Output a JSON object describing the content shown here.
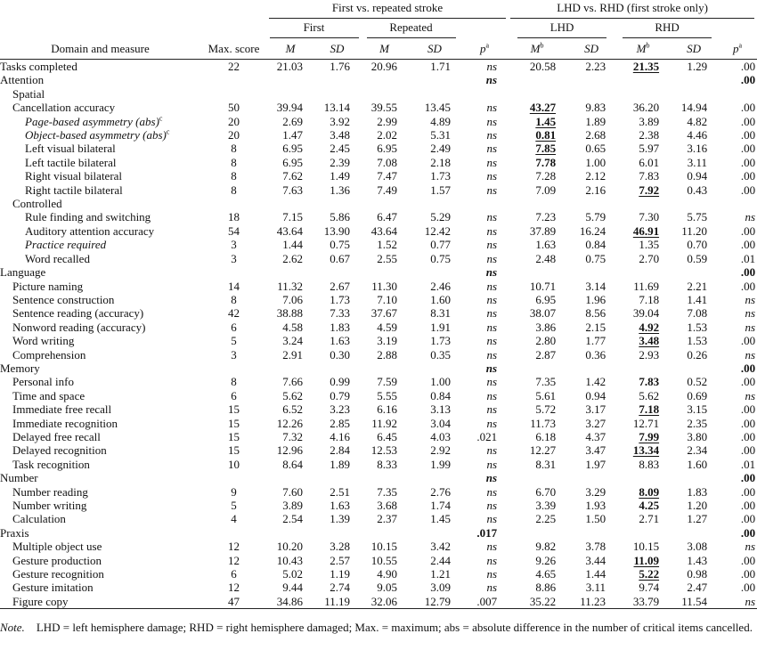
{
  "header": {
    "groups": [
      {
        "label": "First vs. repeated stroke",
        "sub": [
          "First",
          "Repeated"
        ]
      },
      {
        "label": "LHD vs. RHD (first stroke only)",
        "sub": [
          "LHD",
          "RHD"
        ]
      }
    ],
    "domain": "Domain and measure",
    "max": "Max. score",
    "stats": [
      {
        "text": "M"
      },
      {
        "text": "SD"
      },
      {
        "text": "M"
      },
      {
        "text": "SD"
      },
      {
        "text": "p",
        "sup": "a"
      },
      {
        "text": "M",
        "sup": "b"
      },
      {
        "text": "SD"
      },
      {
        "text": "M",
        "sup": "b"
      },
      {
        "text": "SD"
      },
      {
        "text": "p",
        "sup": "a"
      }
    ]
  },
  "rows": [
    {
      "label": "Tasks completed",
      "cells": [
        "22",
        "21.03",
        "1.76",
        "20.96",
        "1.71",
        "ns",
        "20.58",
        "2.23",
        "21.35",
        "1.29",
        ".00"
      ]
    },
    {
      "label": "Attention",
      "cells": [
        null,
        null,
        null,
        null,
        null,
        "ns",
        null,
        null,
        null,
        null,
        ".00"
      ]
    },
    {
      "label": "Spatial"
    },
    {
      "label": "Cancellation accuracy",
      "cells": [
        "50",
        "39.94",
        "13.14",
        "39.55",
        "13.45",
        "ns",
        "43.27",
        "9.83",
        "36.20",
        "14.94",
        ".00"
      ]
    },
    {
      "label": "Page-based asymmetry (abs)",
      "sup": "c",
      "cells": [
        "20",
        "2.69",
        "3.92",
        "2.99",
        "4.89",
        "ns",
        "1.45",
        "1.89",
        "3.89",
        "4.82",
        ".00"
      ]
    },
    {
      "label": "Object-based asymmetry (abs)",
      "sup": "c",
      "cells": [
        "20",
        "1.47",
        "3.48",
        "2.02",
        "5.31",
        "ns",
        "0.81",
        "2.68",
        "2.38",
        "4.46",
        ".00"
      ]
    },
    {
      "label": "Left visual bilateral",
      "cells": [
        "8",
        "6.95",
        "2.45",
        "6.95",
        "2.49",
        "ns",
        "7.85",
        "0.65",
        "5.97",
        "3.16",
        ".00"
      ]
    },
    {
      "label": "Left tactile bilateral",
      "cells": [
        "8",
        "6.95",
        "2.39",
        "7.08",
        "2.18",
        "ns",
        "7.78",
        "1.00",
        "6.01",
        "3.11",
        ".00"
      ]
    },
    {
      "label": "Right visual bilateral",
      "cells": [
        "8",
        "7.62",
        "1.49",
        "7.47",
        "1.73",
        "ns",
        "7.28",
        "2.12",
        "7.83",
        "0.94",
        ".00"
      ]
    },
    {
      "label": "Right tactile bilateral",
      "cells": [
        "8",
        "7.63",
        "1.36",
        "7.49",
        "1.57",
        "ns",
        "7.09",
        "2.16",
        "7.92",
        "0.43",
        ".00"
      ]
    },
    {
      "label": "Controlled"
    },
    {
      "label": "Rule finding and switching",
      "cells": [
        "18",
        "7.15",
        "5.86",
        "6.47",
        "5.29",
        "ns",
        "7.23",
        "5.79",
        "7.30",
        "5.75",
        "ns"
      ]
    },
    {
      "label": "Auditory attention accuracy",
      "cells": [
        "54",
        "43.64",
        "13.90",
        "43.64",
        "12.42",
        "ns",
        "37.89",
        "16.24",
        "46.91",
        "11.20",
        ".00"
      ]
    },
    {
      "label": "Practice required",
      "cells": [
        "3",
        "1.44",
        "0.75",
        "1.52",
        "0.77",
        "ns",
        "1.63",
        "0.84",
        "1.35",
        "0.70",
        ".00"
      ]
    },
    {
      "label": "Word recalled",
      "cells": [
        "3",
        "2.62",
        "0.67",
        "2.55",
        "0.75",
        "ns",
        "2.48",
        "0.75",
        "2.70",
        "0.59",
        ".01"
      ]
    },
    {
      "label": "Language",
      "cells": [
        null,
        null,
        null,
        null,
        null,
        "ns",
        null,
        null,
        null,
        null,
        ".00"
      ]
    },
    {
      "label": "Picture naming",
      "cells": [
        "14",
        "11.32",
        "2.67",
        "11.30",
        "2.46",
        "ns",
        "10.71",
        "3.14",
        "11.69",
        "2.21",
        ".00"
      ]
    },
    {
      "label": "Sentence construction",
      "cells": [
        "8",
        "7.06",
        "1.73",
        "7.10",
        "1.60",
        "ns",
        "6.95",
        "1.96",
        "7.18",
        "1.41",
        "ns"
      ]
    },
    {
      "label": "Sentence reading (accuracy)",
      "cells": [
        "42",
        "38.88",
        "7.33",
        "37.67",
        "8.31",
        "ns",
        "38.07",
        "8.56",
        "39.04",
        "7.08",
        "ns"
      ]
    },
    {
      "label": "Nonword reading (accuracy)",
      "cells": [
        "6",
        "4.58",
        "1.83",
        "4.59",
        "1.91",
        "ns",
        "3.86",
        "2.15",
        "4.92",
        "1.53",
        "ns"
      ]
    },
    {
      "label": "Word writing",
      "cells": [
        "5",
        "3.24",
        "1.63",
        "3.19",
        "1.73",
        "ns",
        "2.80",
        "1.77",
        "3.48",
        "1.53",
        ".00"
      ]
    },
    {
      "label": "Comprehension",
      "cells": [
        "3",
        "2.91",
        "0.30",
        "2.88",
        "0.35",
        "ns",
        "2.87",
        "0.36",
        "2.93",
        "0.26",
        "ns"
      ]
    },
    {
      "label": "Memory",
      "cells": [
        null,
        null,
        null,
        null,
        null,
        "ns",
        null,
        null,
        null,
        null,
        ".00"
      ]
    },
    {
      "label": "Personal info",
      "cells": [
        "8",
        "7.66",
        "0.99",
        "7.59",
        "1.00",
        "ns",
        "7.35",
        "1.42",
        "7.83",
        "0.52",
        ".00"
      ]
    },
    {
      "label": "Time and space",
      "cells": [
        "6",
        "5.62",
        "0.79",
        "5.55",
        "0.84",
        "ns",
        "5.61",
        "0.94",
        "5.62",
        "0.69",
        "ns"
      ]
    },
    {
      "label": "Immediate free recall",
      "cells": [
        "15",
        "6.52",
        "3.23",
        "6.16",
        "3.13",
        "ns",
        "5.72",
        "3.17",
        "7.18",
        "3.15",
        ".00"
      ]
    },
    {
      "label": "Immediate recognition",
      "cells": [
        "15",
        "12.26",
        "2.85",
        "11.92",
        "3.04",
        "ns",
        "11.73",
        "3.27",
        "12.71",
        "2.35",
        ".00"
      ]
    },
    {
      "label": "Delayed free recall",
      "cells": [
        "15",
        "7.32",
        "4.16",
        "6.45",
        "4.03",
        ".021",
        "6.18",
        "4.37",
        "7.99",
        "3.80",
        ".00"
      ]
    },
    {
      "label": "Delayed recognition",
      "cells": [
        "15",
        "12.96",
        "2.84",
        "12.53",
        "2.92",
        "ns",
        "12.27",
        "3.47",
        "13.34",
        "2.34",
        ".00"
      ]
    },
    {
      "label": "Task recognition",
      "cells": [
        "10",
        "8.64",
        "1.89",
        "8.33",
        "1.99",
        "ns",
        "8.31",
        "1.97",
        "8.83",
        "1.60",
        ".01"
      ]
    },
    {
      "label": "Number",
      "cells": [
        null,
        null,
        null,
        null,
        null,
        "ns",
        null,
        null,
        null,
        null,
        ".00"
      ]
    },
    {
      "label": "Number reading",
      "cells": [
        "9",
        "7.60",
        "2.51",
        "7.35",
        "2.76",
        "ns",
        "6.70",
        "3.29",
        "8.09",
        "1.83",
        ".00"
      ]
    },
    {
      "label": "Number writing",
      "cells": [
        "5",
        "3.89",
        "1.63",
        "3.68",
        "1.74",
        "ns",
        "3.39",
        "1.93",
        "4.25",
        "1.20",
        ".00"
      ]
    },
    {
      "label": "Calculation",
      "cells": [
        "4",
        "2.54",
        "1.39",
        "2.37",
        "1.45",
        "ns",
        "2.25",
        "1.50",
        "2.71",
        "1.27",
        ".00"
      ]
    },
    {
      "label": "Praxis",
      "cells": [
        null,
        null,
        null,
        null,
        null,
        ".017",
        null,
        null,
        null,
        null,
        ".00"
      ]
    },
    {
      "label": "Multiple object use",
      "cells": [
        "12",
        "10.20",
        "3.28",
        "10.15",
        "3.42",
        "ns",
        "9.82",
        "3.78",
        "10.15",
        "3.08",
        "ns"
      ]
    },
    {
      "label": "Gesture production",
      "cells": [
        "12",
        "10.43",
        "2.57",
        "10.55",
        "2.44",
        "ns",
        "9.26",
        "3.44",
        "11.09",
        "1.43",
        ".00"
      ]
    },
    {
      "label": "Gesture recognition",
      "cells": [
        "6",
        "5.02",
        "1.19",
        "4.90",
        "1.21",
        "ns",
        "4.65",
        "1.44",
        "5.22",
        "0.98",
        ".00"
      ]
    },
    {
      "label": "Gesture imitation",
      "cells": [
        "12",
        "9.44",
        "2.74",
        "9.05",
        "3.09",
        "ns",
        "8.86",
        "3.11",
        "9.74",
        "2.47",
        ".00"
      ]
    },
    {
      "label": "Figure copy",
      "cells": [
        "47",
        "34.86",
        "11.19",
        "32.06",
        "12.79",
        ".007",
        "35.22",
        "11.23",
        "33.79",
        "11.54",
        "ns"
      ]
    }
  ],
  "note": {
    "label": "Note.",
    "text": "LHD = left hemisphere damage; RHD = right hemisphere damaged; Max. = maximum; abs = absolute difference in the number of critical items cancelled."
  }
}
